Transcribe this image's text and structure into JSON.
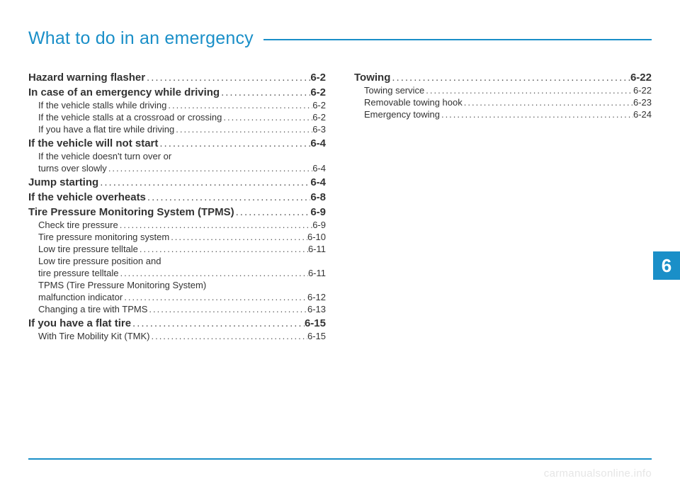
{
  "accent_color": "#1a8fc8",
  "page_bg": "#ffffff",
  "title": "What to do in an emergency",
  "chapter_number": "6",
  "watermark": "carmanualsonline.info",
  "toc": {
    "left": [
      {
        "level": "major",
        "label": "Hazard warning flasher",
        "page": "6-2"
      },
      {
        "level": "major",
        "label": "In case of an emergency while driving",
        "page": "6-2"
      },
      {
        "level": "minor",
        "label": "If the vehicle stalls while driving",
        "page": "6-2"
      },
      {
        "level": "minor",
        "label": "If the vehicle stalls at a crossroad or crossing",
        "page": "6-2"
      },
      {
        "level": "minor",
        "label": "If you have a flat tire while driving",
        "page": "6-3"
      },
      {
        "level": "major",
        "label": "If the vehicle will not start",
        "page": "6-4"
      },
      {
        "level": "minor",
        "label": "If the vehicle doesn't turn over or",
        "page": ""
      },
      {
        "level": "minor",
        "label": "turns over slowly",
        "page": "6-4",
        "continuation": true
      },
      {
        "level": "major",
        "label": "Jump starting",
        "page": "6-4"
      },
      {
        "level": "major",
        "label": "If the vehicle overheats",
        "page": "6-8"
      },
      {
        "level": "major",
        "label": "Tire Pressure Monitoring System (TPMS)",
        "page": "6-9"
      },
      {
        "level": "minor",
        "label": "Check tire pressure",
        "page": "6-9"
      },
      {
        "level": "minor",
        "label": "Tire pressure monitoring system",
        "page": "6-10"
      },
      {
        "level": "minor",
        "label": "Low tire pressure telltale",
        "page": "6-11"
      },
      {
        "level": "minor",
        "label": "Low tire pressure position and",
        "page": ""
      },
      {
        "level": "minor",
        "label": "tire pressure telltale",
        "page": "6-11",
        "continuation": true
      },
      {
        "level": "minor",
        "label": "TPMS (Tire Pressure Monitoring System)",
        "page": ""
      },
      {
        "level": "minor",
        "label": "malfunction indicator",
        "page": "6-12",
        "continuation": true
      },
      {
        "level": "minor",
        "label": "Changing a tire with TPMS",
        "page": "6-13"
      },
      {
        "level": "major",
        "label": "If you have a flat tire",
        "page": "6-15"
      },
      {
        "level": "minor",
        "label": "With Tire Mobility Kit (TMK)",
        "page": "6-15"
      }
    ],
    "right": [
      {
        "level": "major",
        "label": "Towing",
        "page": "6-22"
      },
      {
        "level": "minor",
        "label": "Towing service",
        "page": "6-22"
      },
      {
        "level": "minor",
        "label": "Removable towing hook",
        "page": "6-23"
      },
      {
        "level": "minor",
        "label": "Emergency towing",
        "page": "6-24"
      }
    ]
  }
}
